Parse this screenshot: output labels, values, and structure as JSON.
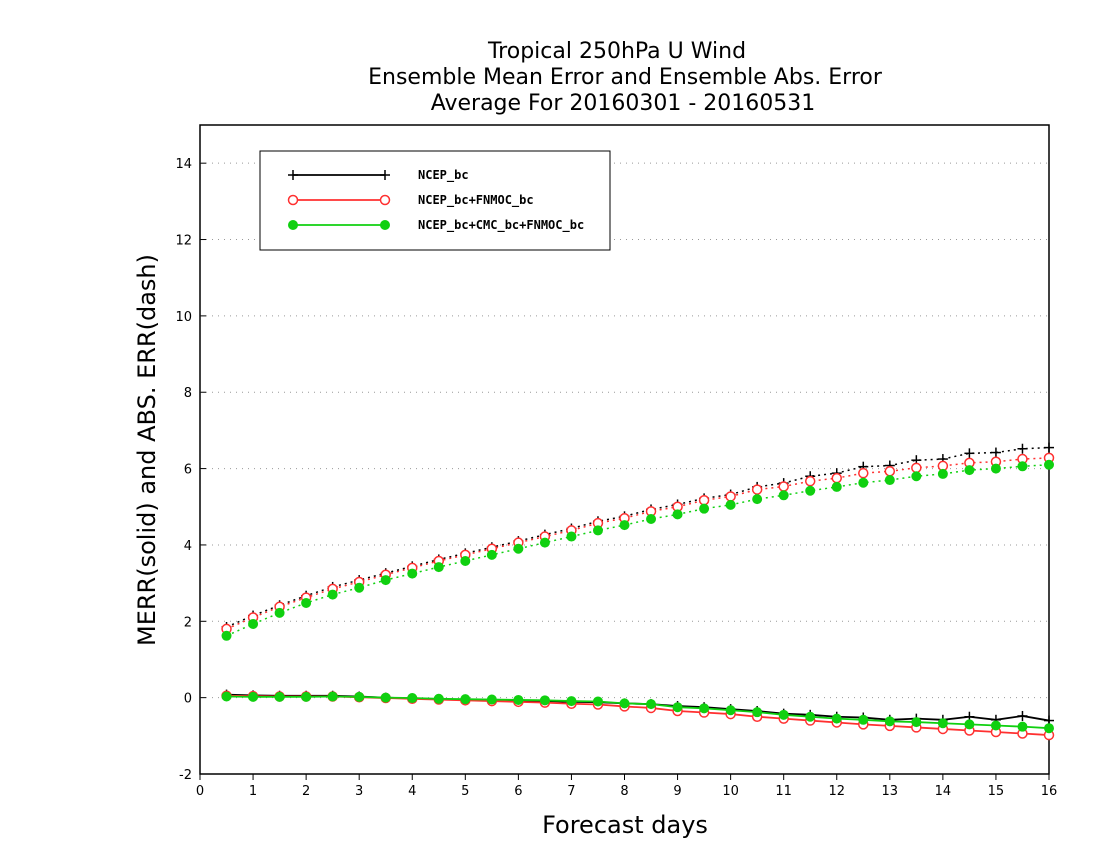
{
  "chart_data": {
    "type": "line",
    "title": [
      "Tropical 250hPa U Wind",
      "Ensemble Mean Error and Ensemble Abs. Error",
      "Average For 20160301 - 20160531"
    ],
    "xlabel": "Forecast days",
    "ylabel": "MERR(solid) and ABS. ERR(dash)",
    "xlim": [
      0,
      16
    ],
    "ylim": [
      -2,
      15
    ],
    "xticks": [
      0,
      1,
      2,
      3,
      4,
      5,
      6,
      7,
      8,
      9,
      10,
      11,
      12,
      13,
      14,
      15,
      16
    ],
    "yticks": [
      -2,
      0,
      2,
      4,
      6,
      8,
      10,
      12,
      14
    ],
    "grid": "horizontal dotted",
    "legend_position": "top-left",
    "x": [
      0.5,
      1.0,
      1.5,
      2.0,
      2.5,
      3.0,
      3.5,
      4.0,
      4.5,
      5.0,
      5.5,
      6.0,
      6.5,
      7.0,
      7.5,
      8.0,
      8.5,
      9.0,
      9.5,
      10.0,
      10.5,
      11.0,
      11.5,
      12.0,
      12.5,
      13.0,
      13.5,
      14.0,
      14.5,
      15.0,
      15.5,
      16.0
    ],
    "series": [
      {
        "name": "NCEP_bc",
        "color": "#000000",
        "marker": "plus",
        "merr": [
          0.08,
          0.06,
          0.05,
          0.05,
          0.05,
          0.03,
          0.0,
          -0.02,
          -0.04,
          -0.05,
          -0.06,
          -0.08,
          -0.09,
          -0.11,
          -0.12,
          -0.15,
          -0.17,
          -0.22,
          -0.25,
          -0.3,
          -0.35,
          -0.42,
          -0.45,
          -0.5,
          -0.52,
          -0.58,
          -0.55,
          -0.58,
          -0.5,
          -0.58,
          -0.48,
          -0.6
        ],
        "abs_err": [
          1.85,
          2.15,
          2.42,
          2.67,
          2.9,
          3.08,
          3.26,
          3.44,
          3.62,
          3.78,
          3.94,
          4.1,
          4.27,
          4.43,
          4.62,
          4.75,
          4.93,
          5.06,
          5.22,
          5.32,
          5.52,
          5.62,
          5.8,
          5.88,
          6.05,
          6.08,
          6.22,
          6.25,
          6.4,
          6.42,
          6.52,
          6.55
        ]
      },
      {
        "name": "NCEP_bc+FNMOC_bc",
        "color": "#ff3030",
        "marker": "open-circle",
        "merr": [
          0.05,
          0.04,
          0.03,
          0.03,
          0.03,
          0.01,
          -0.01,
          -0.03,
          -0.05,
          -0.07,
          -0.09,
          -0.11,
          -0.13,
          -0.16,
          -0.18,
          -0.23,
          -0.27,
          -0.35,
          -0.39,
          -0.43,
          -0.5,
          -0.55,
          -0.6,
          -0.65,
          -0.7,
          -0.74,
          -0.78,
          -0.82,
          -0.86,
          -0.9,
          -0.94,
          -0.98
        ],
        "abs_err": [
          1.8,
          2.1,
          2.38,
          2.62,
          2.85,
          3.03,
          3.22,
          3.4,
          3.58,
          3.74,
          3.9,
          4.06,
          4.22,
          4.38,
          4.57,
          4.7,
          4.88,
          5.0,
          5.17,
          5.27,
          5.45,
          5.53,
          5.67,
          5.75,
          5.88,
          5.93,
          6.02,
          6.07,
          6.15,
          6.18,
          6.25,
          6.28
        ]
      },
      {
        "name": "NCEP_bc+CMC_bc+FNMOC_bc",
        "color": "#10d010",
        "marker": "filled-circle",
        "merr": [
          0.03,
          0.02,
          0.02,
          0.02,
          0.03,
          0.02,
          0.0,
          -0.01,
          -0.03,
          -0.04,
          -0.05,
          -0.06,
          -0.07,
          -0.09,
          -0.1,
          -0.15,
          -0.17,
          -0.25,
          -0.28,
          -0.33,
          -0.38,
          -0.45,
          -0.5,
          -0.55,
          -0.58,
          -0.62,
          -0.64,
          -0.67,
          -0.7,
          -0.73,
          -0.76,
          -0.8
        ],
        "abs_err": [
          1.62,
          1.93,
          2.22,
          2.48,
          2.7,
          2.88,
          3.08,
          3.25,
          3.42,
          3.58,
          3.74,
          3.9,
          4.06,
          4.22,
          4.38,
          4.52,
          4.68,
          4.8,
          4.95,
          5.05,
          5.2,
          5.3,
          5.42,
          5.52,
          5.63,
          5.7,
          5.8,
          5.86,
          5.96,
          6.0,
          6.06,
          6.1
        ]
      }
    ]
  }
}
